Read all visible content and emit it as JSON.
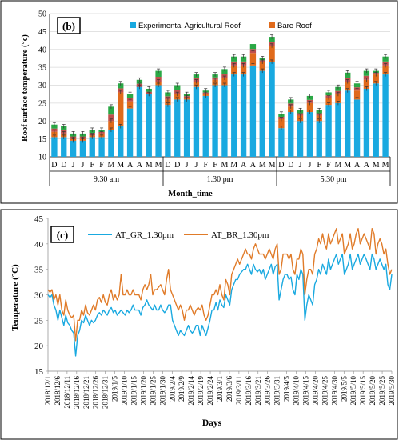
{
  "chart_data": [
    {
      "panel": "(b)",
      "type": "bar",
      "ylabel": "Roof surface temperature (°c)",
      "xlabel": "Month_time",
      "ylim": [
        10,
        50
      ],
      "yticks": [
        10,
        15,
        20,
        25,
        30,
        35,
        40,
        45,
        50
      ],
      "categories": [
        "D",
        "D",
        "J",
        "J",
        "F",
        "F",
        "M",
        "M",
        "A",
        "A",
        "M",
        "M",
        "D",
        "D",
        "J",
        "J",
        "F",
        "F",
        "M",
        "M",
        "A",
        "A",
        "M",
        "M",
        "D",
        "D",
        "J",
        "J",
        "F",
        "F",
        "M",
        "M",
        "A",
        "A",
        "M",
        "M"
      ],
      "groups": [
        "9.30 am",
        "1.30 pm",
        "5.30 pm"
      ],
      "legend": [
        "Experimental Agricultural Roof",
        "Bare Roof"
      ],
      "colors": {
        "agri": "#19a9e0",
        "bare": "#e06a1b",
        "mid": "#c0504d",
        "top": "#2aa845"
      },
      "series": [
        {
          "name": "Experimental Agricultural Roof",
          "values": [
            15.5,
            15.5,
            14.5,
            14.5,
            15.5,
            15.5,
            17.5,
            18.5,
            23.5,
            30.0,
            27.5,
            30.0,
            24.5,
            26.0,
            26.0,
            29.5,
            27.0,
            30.0,
            30.0,
            33.0,
            33.0,
            35.5,
            34.0,
            36.5,
            18.0,
            22.5,
            20.0,
            22.5,
            20.0,
            24.5,
            25.0,
            28.5,
            26.0,
            29.0,
            30.5,
            33.0
          ]
        },
        {
          "name": "Bare Roof",
          "values": [
            17.0,
            16.5,
            15.0,
            15.0,
            16.0,
            16.5,
            20.0,
            28.0,
            25.5,
            29.5,
            27.5,
            31.0,
            26.0,
            27.5,
            26.5,
            31.0,
            27.5,
            31.5,
            32.0,
            35.5,
            35.5,
            39.0,
            36.5,
            41.0,
            20.5,
            24.0,
            21.5,
            25.0,
            21.5,
            26.5,
            27.5,
            31.0,
            28.5,
            31.5,
            33.0,
            35.5
          ]
        }
      ],
      "bar_totals": [
        19.0,
        18.5,
        16.5,
        16.5,
        17.5,
        17.5,
        24.0,
        30.5,
        27.5,
        31.5,
        29.0,
        34.0,
        28.0,
        30.0,
        27.5,
        33.0,
        28.5,
        33.0,
        34.5,
        38.0,
        38.0,
        41.5,
        37.5,
        43.5,
        22.0,
        26.0,
        23.0,
        27.0,
        23.0,
        28.0,
        29.5,
        33.5,
        30.5,
        34.0,
        34.0,
        38.0
      ]
    },
    {
      "panel": "(c)",
      "type": "line",
      "ylabel": "Temperature (°C)",
      "xlabel": "Days",
      "ylim": [
        15,
        45
      ],
      "yticks": [
        15,
        20,
        25,
        30,
        35,
        40,
        45
      ],
      "x_tick_labels": [
        "2018/12/1",
        "2018/12/6",
        "2018/12/11",
        "2018/12/16",
        "2018/12/21",
        "2018/12/26",
        "2018/12/31",
        "2019/1/5",
        "2019/1/10",
        "2019/1/15",
        "2019/1/20",
        "2019/1/25",
        "2019/1/30",
        "2019/2/4",
        "2019/2/9",
        "2019/2/14",
        "2019/2/19",
        "2019/2/24",
        "2019/3/1",
        "2019/3/6",
        "2019/3/11",
        "2019/3/16",
        "2019/3/21",
        "2019/3/26",
        "2019/3/31",
        "2019/4/5",
        "2019/4/10",
        "2019/4/15",
        "2019/4/20",
        "2019/4/25",
        "2019/4/30",
        "2019/5/5",
        "2019/5/10",
        "2019/5/15",
        "2019/5/20",
        "2019/5/25",
        "2019/5/30"
      ],
      "series": [
        {
          "name": "AT_GR_1.30pm",
          "color": "#19a9e0",
          "values": [
            30,
            29.5,
            30,
            28,
            27,
            25,
            27,
            25.5,
            24,
            26,
            24.5,
            24,
            23,
            22.5,
            18,
            22,
            23,
            25,
            24.5,
            26,
            25,
            24,
            25,
            24.5,
            25,
            26,
            26.5,
            26,
            27,
            26.5,
            26,
            27,
            27.5,
            26.5,
            27,
            26,
            26.5,
            27,
            26.5,
            26,
            27,
            26.5,
            27,
            28,
            27,
            27,
            27,
            26,
            27.5,
            28,
            29,
            28,
            27.5,
            27,
            28,
            27,
            27,
            28,
            27,
            26.5,
            27,
            28,
            28,
            25,
            24,
            23,
            22,
            23,
            22.5,
            22,
            23,
            24,
            23,
            22.5,
            23,
            24,
            24,
            22,
            24,
            23,
            22,
            23.5,
            25,
            27,
            27,
            28.5,
            27,
            29,
            28,
            27.5,
            30,
            29,
            28,
            31,
            32,
            33,
            33,
            34,
            34.5,
            35,
            35,
            36,
            35,
            34,
            36,
            35,
            34.5,
            35,
            34,
            35,
            33,
            34,
            35,
            36,
            34,
            35.5,
            36,
            29,
            31,
            33,
            34,
            34,
            33,
            33.5,
            31,
            30,
            34,
            33,
            35,
            34,
            25,
            28,
            30,
            29,
            28,
            32,
            33,
            35,
            34,
            36,
            35,
            34,
            37,
            35,
            36,
            37,
            38,
            36,
            37,
            38,
            34,
            35,
            36,
            38,
            35,
            36,
            37,
            38,
            36,
            37,
            38,
            37,
            36,
            35,
            38,
            37,
            35,
            36,
            37,
            36,
            35,
            36,
            32,
            31,
            34
          ]
        },
        {
          "name": "AT_BR_1.30pm",
          "color": "#e07b29",
          "values": [
            31,
            30.5,
            31,
            29,
            30,
            28,
            30,
            27,
            26,
            29,
            27,
            26,
            25.5,
            26,
            21,
            25,
            25,
            27,
            26,
            28,
            26.5,
            26,
            27,
            28,
            27,
            29,
            29.5,
            28.5,
            30,
            28.5,
            28,
            30,
            31,
            29,
            30,
            29,
            30,
            34,
            30,
            30,
            31,
            30,
            30,
            31,
            30,
            30,
            30,
            29,
            31,
            32,
            31,
            32,
            34,
            30,
            31,
            31,
            31.5,
            32,
            31,
            30,
            33,
            35,
            31,
            30,
            29,
            28,
            27,
            28,
            27,
            25,
            27,
            27,
            28,
            27,
            26,
            27,
            27.5,
            27,
            28,
            26,
            25,
            26,
            28,
            30,
            30,
            31,
            30,
            32,
            30,
            29,
            33,
            32,
            30,
            34,
            35,
            36,
            37,
            36,
            37,
            38,
            39,
            38,
            38,
            37,
            39,
            40,
            39,
            38,
            38,
            38,
            37,
            38,
            39,
            38,
            37,
            39,
            40,
            34,
            35,
            38,
            38,
            38,
            37,
            38,
            35,
            34,
            37,
            37,
            39,
            38,
            30,
            33,
            35,
            35,
            34,
            38,
            39,
            41,
            40,
            42,
            40,
            39,
            42,
            40,
            41,
            42,
            43,
            40,
            41,
            42,
            38,
            39,
            40,
            42,
            39,
            40,
            42,
            43,
            40,
            41,
            42,
            41,
            40,
            39,
            43,
            42,
            38,
            40,
            41,
            40,
            38,
            39,
            36,
            34,
            35
          ]
        }
      ]
    }
  ],
  "panel_b": {
    "label": "(b)",
    "ylabel": "Roof surface temperature (°c)",
    "xlabel": "Month_time",
    "legend_agri": "Experimental Agricultural Roof",
    "legend_bare": "Bare Roof",
    "group_labels": [
      "9.30 am",
      "1.30 pm",
      "5.30 pm"
    ]
  },
  "panel_c": {
    "label": "(c)",
    "ylabel": "Temperature (°C)",
    "xlabel": "Days",
    "legend_gr": "AT_GR_1.30pm",
    "legend_br": "AT_BR_1.30pm"
  }
}
